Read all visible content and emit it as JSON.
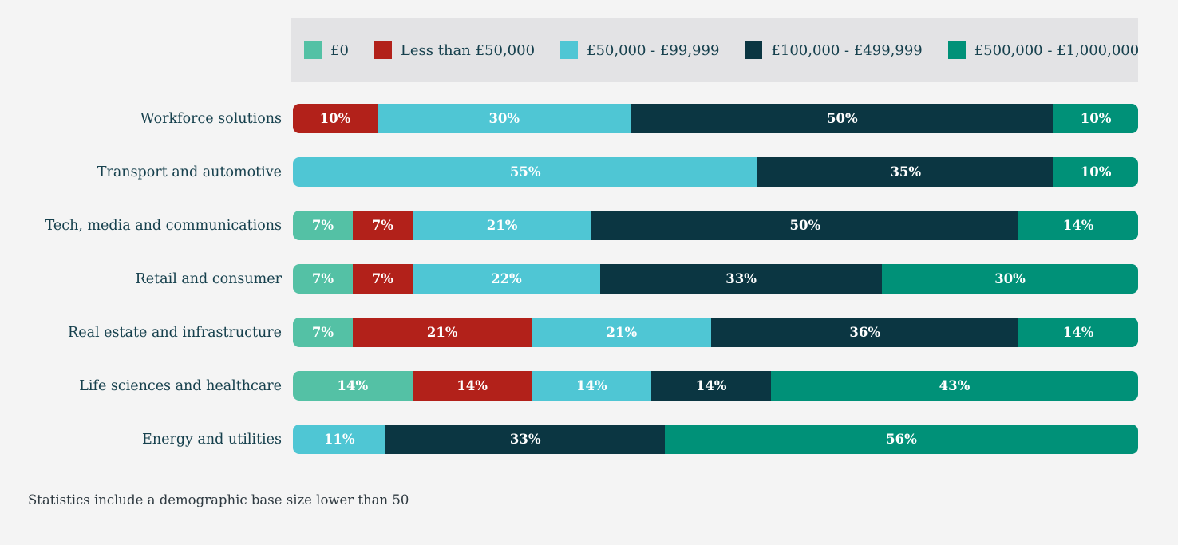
{
  "note": "Statistics include a demographic base size lower than 50",
  "colors": {
    "background": "#f4f4f4",
    "legend_background": "#e3e3e5",
    "label_text": "#16404d",
    "bar_value_text": "#ffffff",
    "note_text": "#2e3940"
  },
  "chart_data": {
    "type": "bar",
    "orientation": "horizontal",
    "stacked": true,
    "value_unit": "%",
    "xlim": [
      0,
      100
    ],
    "legend_position": "top",
    "grid": false,
    "categories": [
      "Workforce solutions",
      "Transport and automotive",
      "Tech, media and communications",
      "Retail and consumer",
      "Real estate and infrastructure",
      "Life sciences and healthcare",
      "Energy and utilities"
    ],
    "series": [
      {
        "name": "£0",
        "color": "#54c1a5",
        "values": [
          0,
          0,
          7,
          7,
          7,
          14,
          0
        ]
      },
      {
        "name": "Less than £50,000",
        "color": "#b2211a",
        "values": [
          10,
          0,
          7,
          7,
          21,
          14,
          0
        ]
      },
      {
        "name": "£50,000 - £99,999",
        "color": "#4fc6d4",
        "values": [
          30,
          55,
          21,
          22,
          21,
          14,
          11
        ]
      },
      {
        "name": "£100,000 - £499,999",
        "color": "#0b3642",
        "values": [
          50,
          35,
          50,
          33,
          36,
          14,
          33
        ]
      },
      {
        "name": "£500,000 - £1,000,000",
        "color": "#009178",
        "values": [
          10,
          10,
          14,
          30,
          14,
          43,
          56
        ]
      }
    ]
  }
}
